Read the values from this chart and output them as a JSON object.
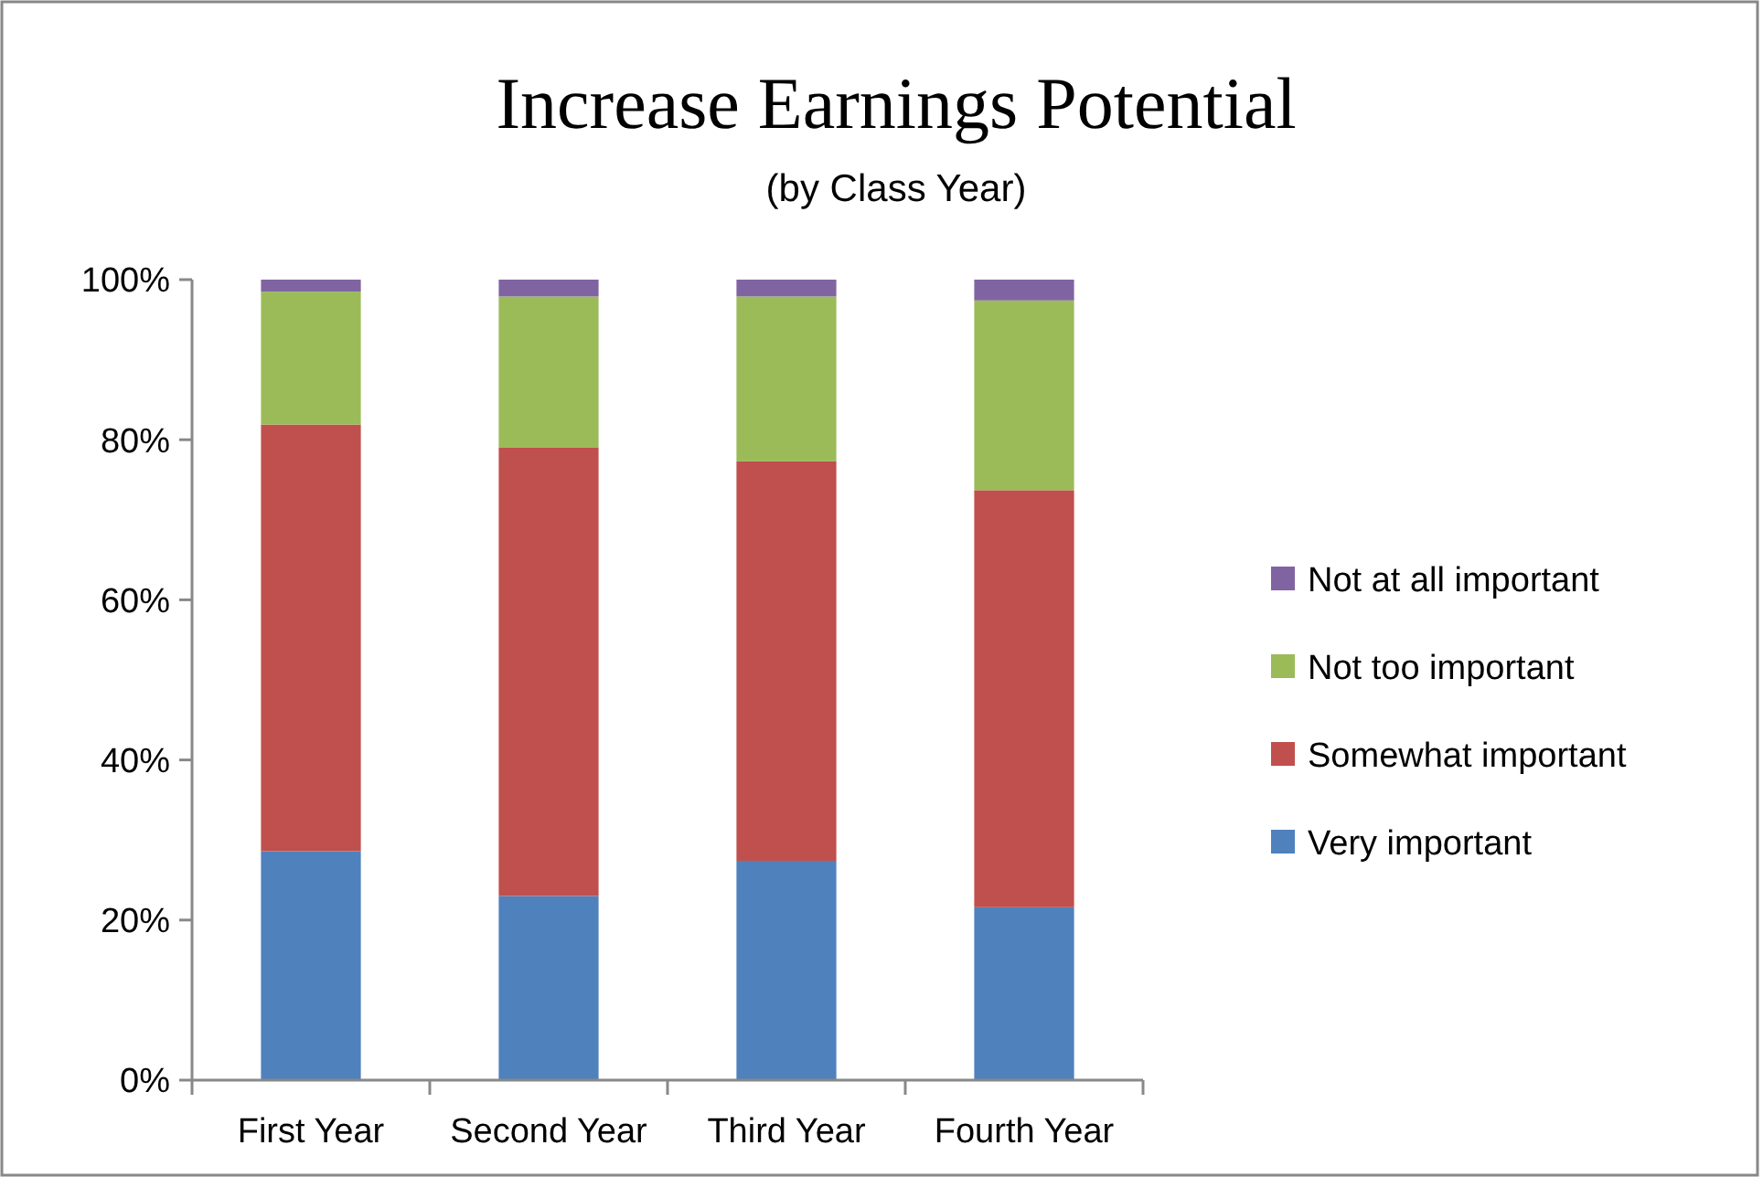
{
  "chart_data": {
    "type": "bar",
    "title": "Increase Earnings Potential",
    "subtitle": "(by Class Year)",
    "stacked": true,
    "legend": "right",
    "grid": false,
    "categories": [
      "First Year",
      "Second Year",
      "Third Year",
      "Fourth Year"
    ],
    "ylim": [
      0,
      100
    ],
    "yticks": [
      {
        "value": 0,
        "label": "0%"
      },
      {
        "value": 20,
        "label": "20%"
      },
      {
        "value": 40,
        "label": "40%"
      },
      {
        "value": 60,
        "label": "60%"
      },
      {
        "value": 80,
        "label": "80%"
      },
      {
        "value": 100,
        "label": "100%"
      }
    ],
    "series": [
      {
        "name": "Very important",
        "color": "#4f81bd",
        "values": [
          28.6,
          23.0,
          27.4,
          21.6
        ]
      },
      {
        "name": "Somewhat important",
        "color": "#c0504d",
        "values": [
          53.3,
          56.0,
          49.9,
          52.1
        ]
      },
      {
        "name": "Not too important",
        "color": "#9bbb59",
        "values": [
          16.6,
          18.9,
          20.6,
          23.7
        ]
      },
      {
        "name": "Not at all important",
        "color": "#8064a2",
        "values": [
          1.5,
          2.1,
          2.1,
          2.6
        ]
      }
    ]
  }
}
